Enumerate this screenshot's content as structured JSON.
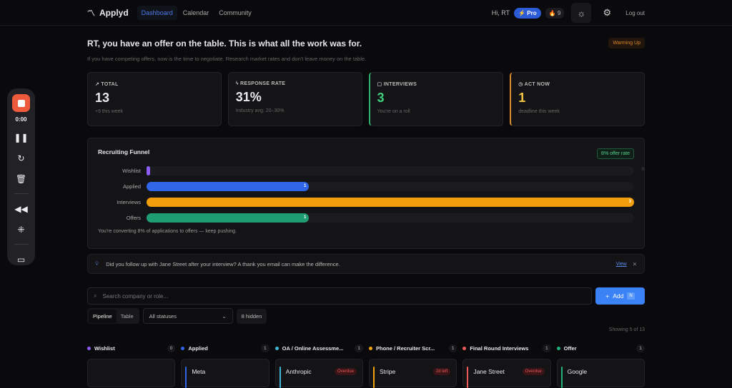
{
  "nav": {
    "brand": "Applyd",
    "links": [
      "Dashboard",
      "Calendar",
      "Community"
    ],
    "greeting": "Hi, RT",
    "pro": "⚡ Pro",
    "streak": "🔥 9",
    "logout": "Log out"
  },
  "header": {
    "title": "RT, you have an offer on the table. This is what all the work was for.",
    "subtitle": "If you have competing offers, now is the time to negotiate. Research market rates and don't leave money on the table.",
    "badge": "Warming Up"
  },
  "stats": [
    {
      "label": "TOTAL",
      "value": "13",
      "note": "+9 this week",
      "icon": "trending-up-icon"
    },
    {
      "label": "RESPONSE RATE",
      "value": "31%",
      "note": "Industry avg: 20–30%",
      "icon": "bolt-icon"
    },
    {
      "label": "INTERVIEWS",
      "value": "3",
      "note": "You're on a roll",
      "icon": "message-icon",
      "color": "#3fcf7f"
    },
    {
      "label": "ACT NOW",
      "value": "1",
      "note": "deadline this week",
      "icon": "clock-icon",
      "color": "#f5c542"
    }
  ],
  "funnel": {
    "title": "Recruiting Funnel",
    "rate": "8% offer rate",
    "rows": [
      {
        "label": "Wishlist",
        "value": 0,
        "color": "#8b5cf6"
      },
      {
        "label": "Applied",
        "value": 1,
        "color": "#2f66e8"
      },
      {
        "label": "Interviews",
        "value": 3,
        "color": "#f29e0c"
      },
      {
        "label": "Offers",
        "value": 1,
        "color": "#1f9d72"
      }
    ],
    "max": 3,
    "note": "You're converting 8% of applications to offers — keep pushing."
  },
  "tip": {
    "text": "Did you follow up with Jane Street after your interview? A thank you email can make the difference.",
    "view": "View"
  },
  "search": {
    "placeholder": "Search company or role..."
  },
  "add": {
    "label": "Add",
    "shortcut": "N"
  },
  "views": [
    "Pipeline",
    "Table"
  ],
  "status_filter": "All statuses",
  "hidden": "8 hidden",
  "showing": "Showing 5 of 13",
  "columns": [
    {
      "name": "Wishlist",
      "count": "0",
      "color": "#8b5cf6",
      "cards": []
    },
    {
      "name": "Applied",
      "count": "1",
      "color": "#2f66e8",
      "cards": [
        {
          "company": "Meta"
        }
      ]
    },
    {
      "name": "OA / Online Assessme...",
      "count": "1",
      "color": "#3fb6d6",
      "cards": [
        {
          "company": "Anthropic",
          "tag": "Overdue"
        }
      ]
    },
    {
      "name": "Phone / Recruiter Scr...",
      "count": "1",
      "color": "#f2a20c",
      "cards": [
        {
          "company": "Stripe",
          "tag": "2d left"
        }
      ]
    },
    {
      "name": "Final Round Interviews",
      "count": "1",
      "color": "#ef5a5a",
      "cards": [
        {
          "company": "Jane Street",
          "tag": "Overdue"
        }
      ]
    },
    {
      "name": "Offer",
      "count": "1",
      "color": "#22b07d",
      "cards": [
        {
          "company": "Google"
        }
      ]
    }
  ],
  "recorder": {
    "time": "0:00"
  }
}
